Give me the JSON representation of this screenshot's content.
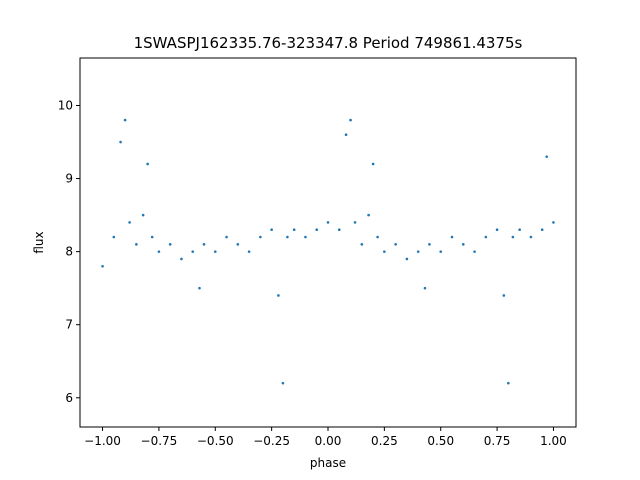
{
  "chart_data": {
    "type": "scatter",
    "title": "1SWASPJ162335.76-323347.8 Period 749861.4375s",
    "xlabel": "phase",
    "ylabel": "flux",
    "xlim": [
      -1.1,
      1.1
    ],
    "ylim": [
      5.6,
      10.65
    ],
    "x_ticks": [
      -1.0,
      -0.75,
      -0.5,
      -0.25,
      0.0,
      0.25,
      0.5,
      0.75,
      1.0
    ],
    "x_tick_labels": [
      "−1.00",
      "−0.75",
      "−0.50",
      "−0.25",
      "0.00",
      "0.25",
      "0.50",
      "0.75",
      "1.00"
    ],
    "y_ticks": [
      6,
      7,
      8,
      9,
      10
    ],
    "y_tick_labels": [
      "6",
      "7",
      "8",
      "9",
      "10"
    ],
    "grid": false,
    "legend": "none",
    "point_color": "#1f77b4",
    "series": [
      {
        "x": [
          -1.0,
          -0.95,
          -0.92,
          -0.9,
          -0.88,
          -0.85,
          -0.82,
          -0.8,
          -0.78,
          -0.75,
          -0.7,
          -0.65,
          -0.6,
          -0.57,
          -0.55,
          -0.5,
          -0.45,
          -0.4,
          -0.35,
          -0.3,
          -0.25,
          -0.22,
          -0.2,
          -0.18,
          -0.15,
          -0.1,
          -0.05,
          0.0,
          0.05,
          0.08,
          0.1,
          0.12,
          0.15,
          0.18,
          0.2,
          0.22,
          0.25,
          0.3,
          0.35,
          0.4,
          0.43,
          0.45,
          0.5,
          0.55,
          0.6,
          0.65,
          0.7,
          0.75,
          0.78,
          0.8,
          0.82,
          0.85,
          0.9,
          0.95,
          0.97,
          1.0
        ],
        "y": [
          7.8,
          8.2,
          9.5,
          9.8,
          8.4,
          8.1,
          8.5,
          9.2,
          8.2,
          8.0,
          8.1,
          7.9,
          8.0,
          7.5,
          8.1,
          8.0,
          8.2,
          8.1,
          8.0,
          8.2,
          8.3,
          7.4,
          6.2,
          8.2,
          8.3,
          8.2,
          8.3,
          8.4,
          8.3,
          9.6,
          9.8,
          8.4,
          8.1,
          8.5,
          9.2,
          8.2,
          8.0,
          8.1,
          7.9,
          8.0,
          7.5,
          8.1,
          8.0,
          8.2,
          8.1,
          8.0,
          8.2,
          8.3,
          7.4,
          6.2,
          8.2,
          8.3,
          8.2,
          8.3,
          9.3,
          8.4
        ]
      }
    ]
  }
}
